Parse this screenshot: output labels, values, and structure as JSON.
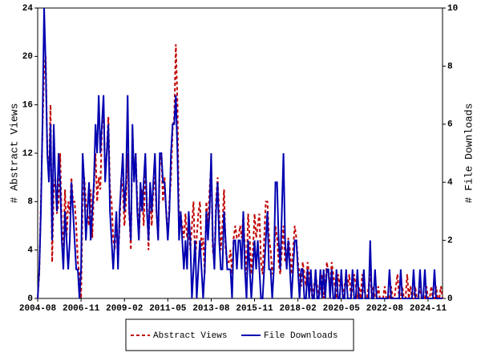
{
  "chart_data": {
    "type": "line",
    "ylabel": "# Abstract Views",
    "y2label": "# File Downloads",
    "x": [
      "2004-08",
      "2004-09",
      "2004-10",
      "2004-11",
      "2004-12",
      "2005-01",
      "2005-02",
      "2005-03",
      "2005-04",
      "2005-05",
      "2005-06",
      "2005-07",
      "2005-08",
      "2005-09",
      "2005-10",
      "2005-11",
      "2005-12",
      "2006-01",
      "2006-02",
      "2006-03",
      "2006-04",
      "2006-05",
      "2006-06",
      "2006-07",
      "2006-08",
      "2006-09",
      "2006-10",
      "2006-11",
      "2006-12",
      "2007-01",
      "2007-02",
      "2007-03",
      "2007-04",
      "2007-05",
      "2007-06",
      "2007-07",
      "2007-08",
      "2007-09",
      "2007-10",
      "2007-11",
      "2007-12",
      "2008-01",
      "2008-02",
      "2008-03",
      "2008-04",
      "2008-05",
      "2008-06",
      "2008-07",
      "2008-08",
      "2008-09",
      "2008-10",
      "2008-11",
      "2008-12",
      "2009-01",
      "2009-02",
      "2009-03",
      "2009-04",
      "2009-05",
      "2009-06",
      "2009-07",
      "2009-08",
      "2009-09",
      "2009-10",
      "2009-11",
      "2009-12",
      "2010-01",
      "2010-02",
      "2010-03",
      "2010-04",
      "2010-05",
      "2010-06",
      "2010-07",
      "2010-08",
      "2010-09",
      "2010-10",
      "2010-11",
      "2010-12",
      "2011-01",
      "2011-02",
      "2011-03",
      "2011-04",
      "2011-05",
      "2011-06",
      "2011-07",
      "2011-08",
      "2011-09",
      "2011-10",
      "2011-11",
      "2011-12",
      "2012-01",
      "2012-02",
      "2012-03",
      "2012-04",
      "2012-05",
      "2012-06",
      "2012-07",
      "2012-08",
      "2012-09",
      "2012-10",
      "2012-11",
      "2012-12",
      "2013-01",
      "2013-02",
      "2013-03",
      "2013-04",
      "2013-05",
      "2013-06",
      "2013-07",
      "2013-08",
      "2013-09",
      "2013-10",
      "2013-11",
      "2013-12",
      "2014-01",
      "2014-02",
      "2014-03",
      "2014-04",
      "2014-05",
      "2014-06",
      "2014-07",
      "2014-08",
      "2014-09",
      "2014-10",
      "2014-11",
      "2014-12",
      "2015-01",
      "2015-02",
      "2015-03",
      "2015-04",
      "2015-05",
      "2015-06",
      "2015-07",
      "2015-08",
      "2015-09",
      "2015-10",
      "2015-11",
      "2015-12",
      "2016-01",
      "2016-02",
      "2016-03",
      "2016-04",
      "2016-05",
      "2016-06",
      "2016-07",
      "2016-08",
      "2016-09",
      "2016-10",
      "2016-11",
      "2016-12",
      "2017-01",
      "2017-02",
      "2017-03",
      "2017-04",
      "2017-05",
      "2017-06",
      "2017-07",
      "2017-08",
      "2017-09",
      "2017-10",
      "2017-11",
      "2017-12",
      "2018-01",
      "2018-02",
      "2018-03",
      "2018-04",
      "2018-05",
      "2018-06",
      "2018-07",
      "2018-08",
      "2018-09",
      "2018-10",
      "2018-11",
      "2018-12",
      "2019-01",
      "2019-02",
      "2019-03",
      "2019-04",
      "2019-05",
      "2019-06",
      "2019-07",
      "2019-08",
      "2019-09",
      "2019-10",
      "2019-11",
      "2019-12",
      "2020-01",
      "2020-02",
      "2020-03",
      "2020-04",
      "2020-05",
      "2020-06",
      "2020-07",
      "2020-08",
      "2020-09",
      "2020-10",
      "2020-11",
      "2020-12",
      "2021-01",
      "2021-02",
      "2021-03",
      "2021-04",
      "2021-05",
      "2021-06",
      "2021-07",
      "2021-08",
      "2021-09",
      "2021-10",
      "2021-11",
      "2021-12",
      "2022-01",
      "2022-02",
      "2022-03",
      "2022-04",
      "2022-05",
      "2022-06",
      "2022-07",
      "2022-08",
      "2022-09",
      "2022-10",
      "2022-11",
      "2022-12",
      "2023-01",
      "2023-02",
      "2023-03",
      "2023-04",
      "2023-05",
      "2023-06",
      "2023-07",
      "2023-08",
      "2023-09",
      "2023-10",
      "2023-11",
      "2023-12",
      "2024-01",
      "2024-02",
      "2024-03",
      "2024-04",
      "2024-05",
      "2024-06",
      "2024-07",
      "2024-08",
      "2024-09",
      "2024-10",
      "2024-11",
      "2024-12",
      "2025-01",
      "2025-02",
      "2025-03",
      "2025-04",
      "2025-05",
      "2025-06",
      "2025-07",
      "2025-08"
    ],
    "series": [
      {
        "name": "Abstract Views",
        "color": "#c00000",
        "dash": true,
        "values": [
          0,
          2,
          8,
          14,
          19,
          20,
          12,
          10,
          16,
          3,
          9,
          10,
          7,
          8,
          12,
          6,
          4,
          9,
          5,
          8,
          7,
          10,
          8,
          8,
          6,
          3,
          2,
          0,
          8,
          10,
          8,
          7,
          6,
          9,
          5,
          9,
          12,
          8,
          10,
          9,
          14,
          16,
          10,
          12,
          15,
          9,
          8,
          5,
          4,
          7,
          3,
          6,
          10,
          9,
          6,
          8,
          12,
          7,
          4,
          14,
          10,
          12,
          8,
          5,
          8,
          9,
          6,
          11,
          8,
          4,
          9,
          6,
          9,
          10,
          7,
          5,
          11,
          12,
          8,
          10,
          7,
          5,
          8,
          10,
          14,
          15,
          21,
          16,
          6,
          7,
          6,
          5,
          7,
          5,
          6,
          4,
          6,
          8,
          3,
          5,
          7,
          8,
          4,
          5,
          2,
          8,
          6,
          9,
          11,
          4,
          3,
          8,
          10,
          7,
          4,
          6,
          9,
          4,
          3,
          3,
          4,
          2,
          5,
          6,
          5,
          5,
          6,
          5,
          7,
          4,
          2,
          7,
          5,
          2,
          4,
          7,
          5,
          6,
          7,
          3,
          2,
          5,
          8,
          8,
          5,
          4,
          2,
          3,
          6,
          5,
          3,
          2,
          4,
          6,
          3,
          3,
          5,
          4,
          2,
          4,
          6,
          5,
          3,
          2,
          1,
          3,
          2,
          1,
          3,
          2,
          1,
          0,
          1,
          2,
          1,
          0,
          1,
          2,
          0,
          1,
          3,
          2,
          1,
          3,
          2,
          1,
          0,
          2,
          1,
          2,
          0,
          1,
          2,
          1,
          2,
          0,
          1,
          2,
          1,
          0,
          1,
          0,
          2,
          1,
          0,
          0,
          1,
          2,
          0,
          1,
          0,
          0,
          1,
          0,
          0,
          0,
          1,
          0,
          0,
          0,
          1,
          0,
          0,
          1,
          2,
          0,
          0,
          1,
          0,
          0,
          2,
          0,
          1,
          0,
          0,
          1,
          0,
          0,
          1,
          0,
          0,
          0,
          1,
          0,
          0,
          1,
          0,
          0,
          1,
          0,
          0,
          1,
          0
        ]
      },
      {
        "name": "File Downloads",
        "color": "#0000b0",
        "axis": "y2",
        "values": [
          0,
          1,
          3,
          6,
          10,
          8,
          5,
          4,
          6,
          2,
          6,
          4,
          3,
          5,
          4,
          2,
          1,
          3,
          2,
          1,
          2,
          4,
          3,
          2,
          1,
          1,
          0,
          1,
          5,
          4,
          2,
          3,
          4,
          2,
          3,
          4,
          6,
          5,
          7,
          5,
          6,
          7,
          4,
          5,
          6,
          3,
          2,
          1,
          2,
          3,
          1,
          3,
          4,
          5,
          3,
          4,
          7,
          3,
          2,
          6,
          4,
          5,
          3,
          2,
          4,
          3,
          4,
          5,
          3,
          2,
          4,
          3,
          4,
          5,
          3,
          2,
          5,
          5,
          4,
          4,
          3,
          2,
          3,
          5,
          6,
          6,
          7,
          5,
          2,
          3,
          2,
          1,
          2,
          1,
          3,
          2,
          0,
          1,
          2,
          0,
          1,
          2,
          1,
          0,
          1,
          3,
          2,
          3,
          5,
          2,
          1,
          3,
          4,
          2,
          1,
          1,
          3,
          2,
          1,
          1,
          1,
          0,
          2,
          2,
          1,
          2,
          2,
          1,
          3,
          1,
          0,
          2,
          1,
          0,
          1,
          2,
          1,
          2,
          1,
          0,
          0,
          1,
          2,
          3,
          1,
          1,
          0,
          1,
          4,
          4,
          2,
          1,
          3,
          5,
          2,
          1,
          2,
          1,
          0,
          1,
          2,
          2,
          1,
          0,
          1,
          1,
          0,
          0,
          1,
          0,
          1,
          0,
          0,
          1,
          0,
          0,
          1,
          0,
          1,
          0,
          1,
          1,
          0,
          1,
          0,
          0,
          1,
          0,
          0,
          1,
          0,
          0,
          1,
          0,
          0,
          0,
          1,
          0,
          0,
          1,
          0,
          0,
          0,
          1,
          0,
          0,
          0,
          2,
          0,
          0,
          1,
          0,
          0,
          0,
          0,
          0,
          0,
          0,
          0,
          1,
          0,
          0,
          0,
          0,
          0,
          0,
          1,
          0,
          0,
          0,
          0,
          0,
          0,
          0,
          1,
          0,
          0,
          0,
          1,
          0,
          0,
          1,
          0,
          0,
          0,
          0,
          0,
          1,
          0,
          0,
          0,
          0,
          0
        ]
      }
    ],
    "xticks": [
      "2004-08",
      "2006-11",
      "2009-02",
      "2011-05",
      "2013-08",
      "2015-11",
      "2018-02",
      "2020-05",
      "2022-08",
      "2024-11"
    ],
    "ylim": [
      0,
      24
    ],
    "yticks": [
      0,
      4,
      8,
      12,
      16,
      20,
      24
    ],
    "y2lim": [
      0,
      10
    ],
    "y2ticks": [
      0,
      2,
      4,
      6,
      8,
      10
    ],
    "legend": "bottom"
  }
}
